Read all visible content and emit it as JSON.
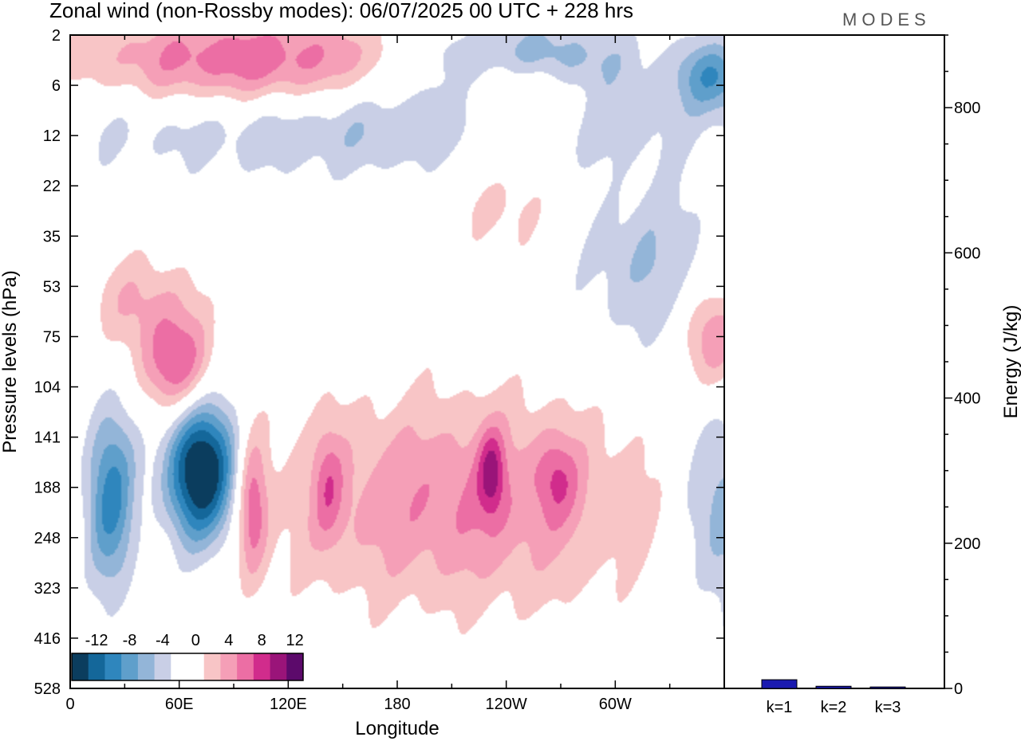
{
  "chart_data": {
    "type": "heatmap",
    "title": "Zonal wind (non-Rossby modes):  06/07/2025  00 UTC  + 228 hrs",
    "brand": "MODES",
    "xlabel": "Longitude",
    "ylabel": "Pressure levels (hPa)",
    "x_tick_labels": [
      "0",
      "60E",
      "120E",
      "180",
      "120W",
      "60W"
    ],
    "y_tick_labels": [
      "2",
      "6",
      "12",
      "22",
      "35",
      "53",
      "75",
      "104",
      "141",
      "188",
      "248",
      "323",
      "416",
      "528"
    ],
    "colorbar": {
      "tick_labels": [
        "-12",
        "-8",
        "-4",
        "0",
        "4",
        "8",
        "12"
      ],
      "colors": [
        "#0b3d5e",
        "#14679a",
        "#2f86bd",
        "#5f9fcb",
        "#93b5d8",
        "#c9cfe6",
        "#ffffff",
        "#ffffff",
        "#f8c5c6",
        "#f59fb7",
        "#ec6ea4",
        "#d12c8c",
        "#9a1479",
        "#5c0a6b"
      ]
    },
    "contour_fields": [
      {
        "name": "upper-westerly-band",
        "lon": 100,
        "lev": 0.6,
        "sx": 70,
        "sy": 0.7,
        "rot": -4,
        "amp": 9
      },
      {
        "name": "upper-easterly-band",
        "lon": 160,
        "lev": 1.6,
        "sx": 130,
        "sy": 0.8,
        "rot": -3,
        "amp": -5
      },
      {
        "name": "tibetan-easterly-jet",
        "lon": 72,
        "lev": 8.7,
        "sx": 14,
        "sy": 1.0,
        "rot": -30,
        "amp": -16
      },
      {
        "name": "east-african-jet",
        "lon": 22,
        "lev": 9.2,
        "sx": 10,
        "sy": 1.3,
        "rot": -20,
        "amp": -9
      },
      {
        "name": "positive-blob-50E",
        "lon": 58,
        "lev": 6.6,
        "sx": 14,
        "sy": 0.7,
        "rot": -25,
        "amp": 8
      },
      {
        "name": "positive-lower-ridge",
        "lon": 100,
        "lev": 9.4,
        "sx": 6,
        "sy": 1.0,
        "rot": 0,
        "amp": 7
      },
      {
        "name": "positive-band-central",
        "lon": 215,
        "lev": 9.3,
        "sx": 75,
        "sy": 1.5,
        "rot": 0,
        "amp": 6
      },
      {
        "name": "positive-core-125W",
        "lon": 232,
        "lev": 8.7,
        "sx": 5,
        "sy": 0.6,
        "rot": 0,
        "amp": 6
      },
      {
        "name": "positive-core-130E",
        "lon": 142,
        "lev": 9.0,
        "sx": 6,
        "sy": 0.8,
        "rot": 0,
        "amp": 4
      },
      {
        "name": "positive-core-95W",
        "lon": 268,
        "lev": 8.8,
        "sx": 8,
        "sy": 0.6,
        "rot": 0,
        "amp": 4
      },
      {
        "name": "positive-east-75hPa",
        "lon": 355,
        "lev": 6.0,
        "sx": 12,
        "sy": 0.8,
        "rot": 0,
        "amp": 7
      },
      {
        "name": "positive-upper-east",
        "lon": 250,
        "lev": 1.2,
        "sx": 20,
        "sy": 0.6,
        "rot": 0,
        "amp": 6
      },
      {
        "name": "positive-mid-strat",
        "lon": 238,
        "lev": 3.2,
        "sx": 22,
        "sy": 1.0,
        "rot": 0,
        "amp": 3
      },
      {
        "name": "positive-west-strat",
        "lon": 40,
        "lev": 5.3,
        "sx": 22,
        "sy": 0.7,
        "rot": -15,
        "amp": 4
      },
      {
        "name": "negative-east-lower",
        "lon": 360,
        "lev": 9.5,
        "sx": 16,
        "sy": 1.5,
        "rot": 0,
        "amp": -6
      },
      {
        "name": "negative-east-mid",
        "lon": 320,
        "lev": 4.6,
        "sx": 30,
        "sy": 1.2,
        "rot": 0,
        "amp": -4
      },
      {
        "name": "negative-east-upper",
        "lon": 355,
        "lev": 0.8,
        "sx": 14,
        "sy": 0.5,
        "rot": 0,
        "amp": -7
      },
      {
        "name": "negative-upper-160W",
        "lon": 250,
        "lev": 0.4,
        "sx": 40,
        "sy": 0.5,
        "rot": 0,
        "amp": -6
      }
    ],
    "xlim": [
      0,
      360
    ],
    "zlim": [
      -14,
      14
    ],
    "energy_panel": {
      "ylabel": "Energy (J/kg)",
      "ylim": [
        0,
        900
      ],
      "y_tick_labels": [
        "200",
        "400",
        "600",
        "800"
      ],
      "y_ticks": [
        200,
        400,
        600,
        800
      ],
      "categories": [
        "k=1",
        "k=2",
        "k=3"
      ],
      "values": [
        12,
        3,
        2
      ],
      "bar_color": "#1a1ab0"
    }
  }
}
